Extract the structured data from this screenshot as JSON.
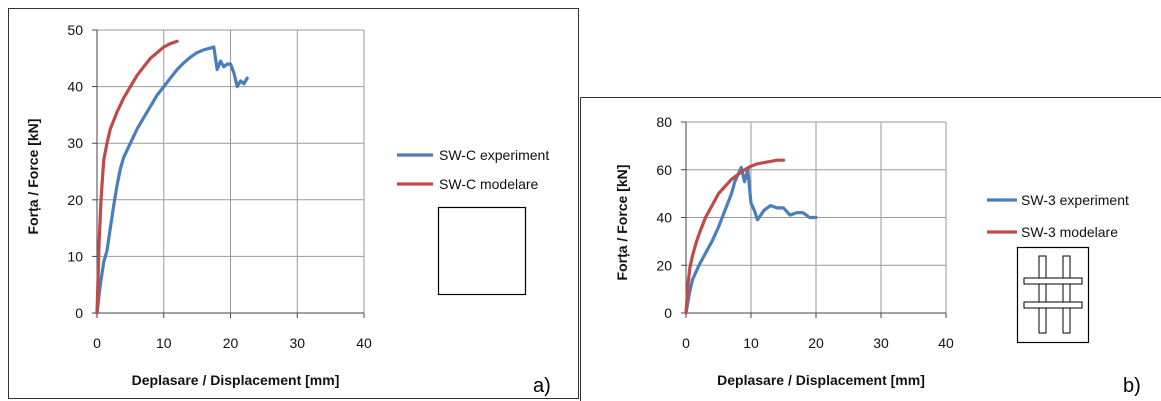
{
  "chart_data": [
    {
      "type": "line",
      "panel_label": "a)",
      "xlabel": "Deplasare / Displacement [mm]",
      "ylabel": "Forța / Force [kN]",
      "xlim": [
        0,
        40
      ],
      "ylim": [
        0,
        50
      ],
      "x_ticks": [
        "0",
        "10",
        "20",
        "30",
        "40"
      ],
      "y_ticks": [
        "0",
        "10",
        "20",
        "30",
        "40",
        "50"
      ],
      "grid": true,
      "legend_position": "right",
      "legend_symbol": "square-outline",
      "series": [
        {
          "name": "SW-C experiment",
          "color": "#4a7ebb",
          "x": [
            0,
            0.5,
            1,
            1.5,
            2,
            2.5,
            3,
            3.5,
            4,
            5,
            6,
            7,
            8,
            9,
            10,
            11,
            12,
            13,
            14,
            15,
            16,
            17,
            17.5,
            18,
            18.5,
            19,
            19.5,
            20,
            20.5,
            21,
            21.5,
            22,
            22.5
          ],
          "y": [
            0,
            5,
            9,
            11,
            15,
            19,
            22.5,
            25.5,
            27.5,
            30,
            32.5,
            34.5,
            36.5,
            38.5,
            40,
            41.5,
            43,
            44.2,
            45.2,
            46,
            46.5,
            46.8,
            47,
            43,
            44.5,
            43.5,
            44,
            44,
            42.5,
            40,
            41,
            40.5,
            41.5
          ]
        },
        {
          "name": "SW-C modelare",
          "color": "#be4b48",
          "x": [
            0,
            0.3,
            0.6,
            1,
            1.5,
            2,
            3,
            4,
            5,
            6,
            7,
            8,
            9,
            10,
            11,
            12
          ],
          "y": [
            0,
            12,
            20,
            27,
            30,
            32.5,
            35.5,
            38,
            40,
            42,
            43.5,
            45,
            46,
            47,
            47.6,
            48
          ]
        }
      ]
    },
    {
      "type": "line",
      "panel_label": "b)",
      "xlabel": "Deplasare  / Displacement [mm]",
      "ylabel": "Forța / Force [kN]",
      "xlim": [
        0,
        40
      ],
      "ylim": [
        0,
        80
      ],
      "x_ticks": [
        "0",
        "10",
        "20",
        "30",
        "40"
      ],
      "y_ticks": [
        "0",
        "20",
        "40",
        "60",
        "80"
      ],
      "grid": true,
      "legend_position": "right",
      "legend_symbol": "square-with-grid",
      "series": [
        {
          "name": "SW-3 experiment",
          "color": "#4a7ebb",
          "x": [
            0,
            0.5,
            1,
            2,
            3,
            4,
            5,
            6,
            7,
            7.5,
            8,
            8.5,
            9,
            9.5,
            10,
            10.5,
            11,
            12,
            13,
            14,
            15,
            16,
            17,
            18,
            19,
            20
          ],
          "y": [
            0,
            8,
            14,
            20,
            25,
            30,
            36,
            43,
            50,
            55,
            58,
            61,
            55,
            60,
            46,
            43,
            39,
            43,
            45,
            44,
            44,
            41,
            42,
            42,
            40,
            40
          ]
        },
        {
          "name": "SW-3 modelare",
          "color": "#be4b48",
          "x": [
            0,
            0.3,
            0.6,
            1,
            1.5,
            2,
            3,
            4,
            5,
            6,
            7,
            8,
            9,
            10,
            11,
            12,
            13,
            14,
            15
          ],
          "y": [
            0,
            12,
            19,
            24,
            29,
            33,
            40,
            45,
            50,
            53,
            56,
            58,
            60,
            61.5,
            62.5,
            63,
            63.5,
            64,
            64
          ]
        }
      ]
    }
  ]
}
